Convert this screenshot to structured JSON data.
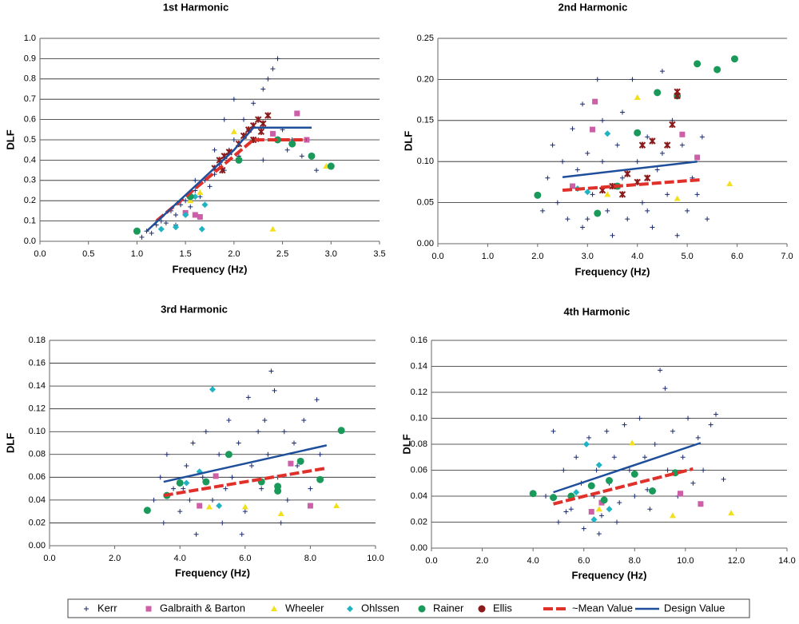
{
  "chart_data": [
    {
      "type": "scatter",
      "title": "1st Harmonic",
      "x_label": "Frequency (Hz)",
      "y_label": "DLF",
      "grid": "y",
      "xlim": [
        0,
        3.5
      ],
      "ylim": [
        0,
        1
      ],
      "xticks": [
        {
          "value": 0,
          "label": "0.0"
        },
        0.5,
        {
          "value": 1,
          "label": "1.0"
        },
        1.5,
        {
          "value": 2,
          "label": "2.0"
        },
        2.5,
        {
          "value": 3,
          "label": "3.0"
        },
        3.5
      ],
      "yticks": [
        {
          "value": 0,
          "label": "0.0"
        },
        0.1,
        0.2,
        0.3,
        0.4,
        0.5,
        0.6,
        0.7,
        0.8,
        0.9,
        {
          "value": 1,
          "label": "1.0"
        }
      ],
      "series": [
        {
          "name": "Kerr",
          "color": "#1a2a6c",
          "marker": "plus",
          "x": [
            1.05,
            1.1,
            1.15,
            1.2,
            1.25,
            1.3,
            1.35,
            1.4,
            1.45,
            1.5,
            1.55,
            1.6,
            1.65,
            1.7,
            1.75,
            1.8,
            1.85,
            1.9,
            1.95,
            2.0,
            2.05,
            2.1,
            2.15,
            2.2,
            2.25,
            2.3,
            2.35,
            2.4,
            2.45,
            2.5,
            2.55,
            2.6,
            2.7,
            2.85,
            1.9,
            2.0,
            1.6,
            1.4,
            1.8,
            2.3
          ],
          "values": [
            0.02,
            0.05,
            0.04,
            0.08,
            0.1,
            0.09,
            0.15,
            0.13,
            0.18,
            0.2,
            0.17,
            0.25,
            0.22,
            0.3,
            0.27,
            0.33,
            0.38,
            0.35,
            0.45,
            0.5,
            0.42,
            0.6,
            0.55,
            0.68,
            0.5,
            0.75,
            0.8,
            0.85,
            0.9,
            0.55,
            0.45,
            0.5,
            0.42,
            0.35,
            0.6,
            0.7,
            0.3,
            0.08,
            0.45,
            0.4
          ]
        },
        {
          "name": "Galbraith & Barton",
          "color": "#cc5fa8",
          "marker": "square",
          "x": [
            1.5,
            1.6,
            1.65,
            2.65,
            2.4,
            2.75
          ],
          "values": [
            0.14,
            0.13,
            0.12,
            0.63,
            0.53,
            0.5
          ]
        },
        {
          "name": "Wheeler",
          "color": "#f2e01c",
          "marker": "triangle",
          "x": [
            2.4,
            1.55,
            1.65,
            2.0,
            2.95
          ],
          "values": [
            0.06,
            0.2,
            0.24,
            0.54,
            0.37
          ]
        },
        {
          "name": "Ohlssen",
          "color": "#1fb3c4",
          "marker": "diamond",
          "x": [
            1.25,
            1.4,
            1.5,
            1.67,
            1.7,
            1.6
          ],
          "values": [
            0.06,
            0.07,
            0.13,
            0.06,
            0.18,
            0.22
          ]
        },
        {
          "name": "Rainer",
          "color": "#1a9a5a",
          "marker": "circle",
          "x": [
            1.0,
            1.55,
            2.05,
            2.6,
            2.8,
            3.0,
            2.45
          ],
          "values": [
            0.05,
            0.22,
            0.4,
            0.48,
            0.42,
            0.37,
            0.5
          ]
        },
        {
          "name": "Ellis",
          "color": "#8b1a1a",
          "marker": "ellis",
          "x": [
            1.8,
            1.85,
            1.9,
            1.95,
            2.05,
            2.1,
            2.15,
            2.2,
            2.25,
            2.3,
            2.35,
            2.2,
            2.28,
            1.88
          ],
          "values": [
            0.36,
            0.4,
            0.42,
            0.44,
            0.48,
            0.52,
            0.55,
            0.57,
            0.6,
            0.58,
            0.62,
            0.5,
            0.54,
            0.35
          ]
        },
        {
          "name": "~Mean Value",
          "color": "#e0302a",
          "marker": "dash",
          "x": [
            1.2,
            2.2,
            2.75
          ],
          "values": [
            0.1,
            0.5,
            0.5
          ]
        },
        {
          "name": "Design Value",
          "color": "#1f4e9a",
          "marker": "line",
          "x": [
            1.1,
            2.0,
            2.2,
            2.8
          ],
          "values": [
            0.05,
            0.45,
            0.56,
            0.56
          ]
        }
      ]
    },
    {
      "type": "scatter",
      "title": "2nd Harmonic",
      "x_label": "Frequency (Hz)",
      "y_label": "DLF",
      "grid": "y",
      "xlim": [
        0,
        7
      ],
      "ylim": [
        0,
        0.25
      ],
      "xticks": [
        {
          "value": 0,
          "label": "0.0"
        },
        {
          "value": 1,
          "label": "1.0"
        },
        {
          "value": 2,
          "label": "2.0"
        },
        {
          "value": 3,
          "label": "3.0"
        },
        {
          "value": 4,
          "label": "4.0"
        },
        {
          "value": 5,
          "label": "5.0"
        },
        {
          "value": 6,
          "label": "6.0"
        },
        {
          "value": 7,
          "label": "7.0"
        }
      ],
      "yticks": [
        {
          "value": 0,
          "label": "0.00"
        },
        0.05,
        {
          "value": 0.1,
          "label": "0.10"
        },
        0.15,
        {
          "value": 0.2,
          "label": "0.20"
        },
        0.25
      ],
      "series": [
        {
          "name": "Kerr",
          "color": "#1a2a6c",
          "marker": "plus",
          "x": [
            2.2,
            2.3,
            2.4,
            2.5,
            2.6,
            2.7,
            2.8,
            2.9,
            3.0,
            3.1,
            3.2,
            3.3,
            3.4,
            3.5,
            3.6,
            3.7,
            3.8,
            3.9,
            4.0,
            4.1,
            4.2,
            4.3,
            4.4,
            4.5,
            4.6,
            4.7,
            4.8,
            4.9,
            5.0,
            5.1,
            5.2,
            5.3,
            5.4,
            2.1,
            2.9,
            3.3,
            3.7,
            4.2,
            3.0,
            4.5
          ],
          "values": [
            0.08,
            0.12,
            0.05,
            0.1,
            0.03,
            0.14,
            0.09,
            0.02,
            0.11,
            0.06,
            0.2,
            0.15,
            0.04,
            0.01,
            0.12,
            0.08,
            0.03,
            0.2,
            0.1,
            0.05,
            0.13,
            0.02,
            0.09,
            0.21,
            0.06,
            0.15,
            0.01,
            0.12,
            0.04,
            0.08,
            0.06,
            0.13,
            0.03,
            0.04,
            0.17,
            0.1,
            0.16,
            0.04,
            0.03,
            0.11
          ]
        },
        {
          "name": "Galbraith & Barton",
          "color": "#cc5fa8",
          "marker": "square",
          "x": [
            3.15,
            3.1,
            4.9,
            5.2,
            2.7,
            3.6
          ],
          "values": [
            0.173,
            0.139,
            0.133,
            0.105,
            0.07,
            0.07
          ]
        },
        {
          "name": "Wheeler",
          "color": "#f2e01c",
          "marker": "triangle",
          "x": [
            4.0,
            5.85,
            4.8,
            3.4
          ],
          "values": [
            0.178,
            0.073,
            0.055,
            0.06
          ]
        },
        {
          "name": "Ohlssen",
          "color": "#1fb3c4",
          "marker": "diamond",
          "x": [
            3.4,
            2.8,
            3.0
          ],
          "values": [
            0.134,
            0.067,
            0.063
          ]
        },
        {
          "name": "Rainer",
          "color": "#1a9a5a",
          "marker": "circle",
          "x": [
            2.0,
            5.2,
            5.6,
            5.95,
            4.4,
            4.8,
            4.0,
            3.2,
            3.6
          ],
          "values": [
            0.059,
            0.219,
            0.212,
            0.225,
            0.184,
            0.18,
            0.135,
            0.037,
            0.07
          ]
        },
        {
          "name": "Ellis",
          "color": "#8b1a1a",
          "marker": "ellis",
          "x": [
            4.8,
            4.8,
            4.7,
            4.6,
            4.3,
            4.1,
            3.8,
            3.5,
            3.3,
            4.0,
            3.7,
            4.2
          ],
          "values": [
            0.185,
            0.18,
            0.145,
            0.12,
            0.125,
            0.12,
            0.085,
            0.07,
            0.065,
            0.075,
            0.06,
            0.08
          ]
        },
        {
          "name": "~Mean Value",
          "color": "#e0302a",
          "marker": "dash",
          "x": [
            2.5,
            5.3
          ],
          "values": [
            0.065,
            0.078
          ]
        },
        {
          "name": "Design Value",
          "color": "#1f4e9a",
          "marker": "line",
          "x": [
            2.5,
            5.2
          ],
          "values": [
            0.081,
            0.1
          ]
        }
      ]
    },
    {
      "type": "scatter",
      "title": "3rd Harmonic",
      "x_label": "Frequency (Hz)",
      "y_label": "DLF",
      "grid": "y",
      "xlim": [
        0,
        10
      ],
      "ylim": [
        0,
        0.18
      ],
      "xticks": [
        {
          "value": 0,
          "label": "0.0"
        },
        {
          "value": 2,
          "label": "2.0"
        },
        {
          "value": 4,
          "label": "4.0"
        },
        {
          "value": 6,
          "label": "6.0"
        },
        {
          "value": 8,
          "label": "8.0"
        },
        {
          "value": 10,
          "label": "10.0"
        }
      ],
      "yticks": [
        {
          "value": 0,
          "label": "0.00"
        },
        0.02,
        0.04,
        0.06,
        0.08,
        {
          "value": 0.1,
          "label": "0.10"
        },
        0.12,
        0.14,
        0.16,
        0.18
      ],
      "series": [
        {
          "name": "Kerr",
          "color": "#1a2a6c",
          "marker": "plus",
          "x": [
            3.2,
            3.4,
            3.5,
            3.6,
            3.8,
            4.0,
            4.2,
            4.4,
            4.5,
            4.7,
            4.8,
            5.0,
            5.2,
            5.3,
            5.5,
            5.6,
            5.8,
            6.0,
            6.1,
            6.2,
            6.4,
            6.5,
            6.7,
            6.8,
            6.9,
            7.0,
            7.2,
            7.3,
            7.5,
            7.6,
            7.8,
            8.0,
            8.2,
            8.3,
            4.1,
            5.9,
            6.6,
            5.4,
            4.3,
            7.1
          ],
          "values": [
            0.04,
            0.06,
            0.02,
            0.08,
            0.05,
            0.03,
            0.07,
            0.09,
            0.01,
            0.06,
            0.1,
            0.04,
            0.08,
            0.02,
            0.11,
            0.06,
            0.09,
            0.03,
            0.13,
            0.07,
            0.1,
            0.05,
            0.08,
            0.153,
            0.136,
            0.06,
            0.1,
            0.04,
            0.09,
            0.07,
            0.11,
            0.05,
            0.128,
            0.08,
            0.05,
            0.01,
            0.11,
            0.05,
            0.04,
            0.02
          ]
        },
        {
          "name": "Galbraith & Barton",
          "color": "#cc5fa8",
          "marker": "square",
          "x": [
            4.6,
            7.4,
            8.0,
            5.1
          ],
          "values": [
            0.035,
            0.072,
            0.035,
            0.061
          ]
        },
        {
          "name": "Wheeler",
          "color": "#f2e01c",
          "marker": "triangle",
          "x": [
            8.8,
            7.1,
            6.0,
            4.9
          ],
          "values": [
            0.035,
            0.028,
            0.034,
            0.034
          ]
        },
        {
          "name": "Ohlssen",
          "color": "#1fb3c4",
          "marker": "diamond",
          "x": [
            5.0,
            4.6,
            4.2,
            5.2
          ],
          "values": [
            0.137,
            0.065,
            0.055,
            0.035
          ]
        },
        {
          "name": "Rainer",
          "color": "#1a9a5a",
          "marker": "circle",
          "x": [
            3.0,
            3.6,
            4.0,
            4.8,
            5.5,
            6.5,
            7.0,
            7.0,
            7.7,
            8.3,
            8.95
          ],
          "values": [
            0.031,
            0.044,
            0.055,
            0.056,
            0.08,
            0.056,
            0.052,
            0.048,
            0.074,
            0.058,
            0.101
          ]
        },
        {
          "name": "~Mean Value",
          "color": "#e0302a",
          "marker": "dash",
          "x": [
            3.5,
            8.5
          ],
          "values": [
            0.044,
            0.068
          ]
        },
        {
          "name": "Design Value",
          "color": "#1f4e9a",
          "marker": "line",
          "x": [
            3.5,
            8.5
          ],
          "values": [
            0.056,
            0.088
          ]
        }
      ]
    },
    {
      "type": "scatter",
      "title": "4th Harmonic",
      "x_label": "Frequency (Hz)",
      "y_label": "DLF",
      "grid": "y",
      "xlim": [
        0,
        14
      ],
      "ylim": [
        0,
        0.16
      ],
      "xticks": [
        {
          "value": 0,
          "label": "0.0"
        },
        {
          "value": 2,
          "label": "2.0"
        },
        {
          "value": 4,
          "label": "4.0"
        },
        {
          "value": 6,
          "label": "6.0"
        },
        {
          "value": 8,
          "label": "8.0"
        },
        {
          "value": 10,
          "label": "10.0"
        },
        {
          "value": 12,
          "label": "12.0"
        },
        {
          "value": 14,
          "label": "14.0"
        }
      ],
      "yticks": [
        {
          "value": 0,
          "label": "0.00"
        },
        0.02,
        0.04,
        0.06,
        0.08,
        {
          "value": 0.1,
          "label": "0.10"
        },
        0.12,
        0.14,
        0.16
      ],
      "series": [
        {
          "name": "Kerr",
          "color": "#1a2a6c",
          "marker": "plus",
          "x": [
            4.5,
            4.8,
            5.0,
            5.2,
            5.5,
            5.7,
            5.9,
            6.0,
            6.2,
            6.4,
            6.5,
            6.7,
            6.9,
            7.0,
            7.2,
            7.4,
            7.6,
            7.8,
            8.0,
            8.2,
            8.4,
            8.6,
            8.8,
            9.0,
            9.2,
            9.3,
            9.5,
            9.7,
            9.9,
            10.1,
            10.3,
            10.5,
            10.7,
            11.0,
            11.2,
            11.5,
            7.3,
            8.5,
            6.6,
            5.3
          ],
          "values": [
            0.04,
            0.09,
            0.02,
            0.06,
            0.03,
            0.07,
            0.05,
            0.015,
            0.085,
            0.04,
            0.06,
            0.025,
            0.09,
            0.05,
            0.07,
            0.035,
            0.095,
            0.06,
            0.04,
            0.1,
            0.07,
            0.03,
            0.08,
            0.137,
            0.123,
            0.06,
            0.09,
            0.04,
            0.07,
            0.1,
            0.05,
            0.085,
            0.06,
            0.095,
            0.103,
            0.053,
            0.02,
            0.045,
            0.011,
            0.028
          ]
        },
        {
          "name": "Galbraith & Barton",
          "color": "#cc5fa8",
          "marker": "square",
          "x": [
            6.3,
            9.8,
            10.6,
            6.7
          ],
          "values": [
            0.028,
            0.042,
            0.034,
            0.035
          ]
        },
        {
          "name": "Wheeler",
          "color": "#f2e01c",
          "marker": "triangle",
          "x": [
            7.9,
            9.5,
            11.8,
            6.6
          ],
          "values": [
            0.081,
            0.025,
            0.027,
            0.03
          ]
        },
        {
          "name": "Ohlssen",
          "color": "#1fb3c4",
          "marker": "diamond",
          "x": [
            6.1,
            6.6,
            5.7,
            6.4,
            7.0
          ],
          "values": [
            0.08,
            0.064,
            0.043,
            0.022,
            0.03
          ]
        },
        {
          "name": "Rainer",
          "color": "#1a9a5a",
          "marker": "circle",
          "x": [
            4.0,
            4.8,
            5.5,
            6.3,
            7.0,
            8.0,
            8.7,
            9.6,
            6.8
          ],
          "values": [
            0.042,
            0.039,
            0.04,
            0.048,
            0.052,
            0.057,
            0.044,
            0.058,
            0.037
          ]
        },
        {
          "name": "~Mean Value",
          "color": "#e0302a",
          "marker": "dash",
          "x": [
            4.8,
            10.3
          ],
          "values": [
            0.034,
            0.061
          ]
        },
        {
          "name": "Design Value",
          "color": "#1f4e9a",
          "marker": "line",
          "x": [
            4.8,
            10.6
          ],
          "values": [
            0.043,
            0.081
          ]
        }
      ]
    }
  ]
}
